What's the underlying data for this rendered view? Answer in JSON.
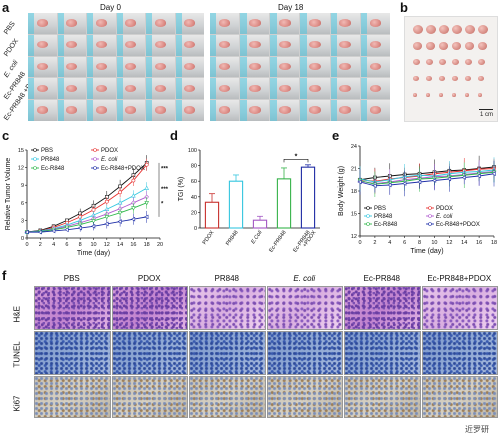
{
  "panels": {
    "a": {
      "letter": "a",
      "day_left": "Day 0",
      "day_right": "Day 18",
      "groups": [
        "PBS",
        "PDOX",
        "E. coli",
        "Ec-PR848",
        "Ec-PR848 +PDOX"
      ]
    },
    "b": {
      "letter": "b",
      "scale": "1 cm"
    },
    "c": {
      "letter": "c",
      "marks": [
        "***",
        "***",
        "*"
      ]
    },
    "d": {
      "letter": "d",
      "marks": [
        "*"
      ]
    },
    "e": {
      "letter": "e"
    },
    "f": {
      "letter": "f",
      "columns": [
        "PBS",
        "PDOX",
        "PR848",
        "E. coli",
        "Ec-PR848",
        "Ec-PR848+PDOX"
      ],
      "rows": [
        "H&E",
        "TUNEL",
        "Ki67"
      ],
      "watermark": "近罗研"
    }
  },
  "chart_data": [
    {
      "panel": "c",
      "type": "line",
      "xlabel": "Time (day)",
      "ylabel": "Relative Tumor Volume",
      "xlim": [
        0,
        20
      ],
      "ylim": [
        0,
        15
      ],
      "xticks": [
        0,
        2,
        4,
        6,
        8,
        10,
        12,
        14,
        16,
        18,
        20
      ],
      "yticks": [
        0,
        3,
        6,
        9,
        12,
        15
      ],
      "grid": false,
      "legend": "top-left",
      "x": [
        0,
        2,
        4,
        6,
        8,
        10,
        12,
        14,
        16,
        18
      ],
      "series": [
        {
          "name": "PBS",
          "color": "#111111",
          "values": [
            1.0,
            1.3,
            2.0,
            3.0,
            4.2,
            5.5,
            7.0,
            8.8,
            10.7,
            12.8
          ]
        },
        {
          "name": "PDOX",
          "color": "#e8312f",
          "values": [
            1.0,
            1.2,
            1.8,
            2.6,
            3.6,
            4.8,
            6.2,
            7.8,
            9.8,
            12.5
          ]
        },
        {
          "name": "PR848",
          "color": "#35c7e0",
          "values": [
            1.0,
            1.2,
            1.6,
            2.2,
            3.0,
            3.9,
            4.9,
            6.0,
            7.2,
            8.5
          ]
        },
        {
          "name": "E. coli",
          "color": "#b05bd0",
          "values": [
            1.0,
            1.1,
            1.5,
            2.0,
            2.6,
            3.3,
            4.1,
            5.0,
            6.0,
            7.0
          ]
        },
        {
          "name": "Ec-R848",
          "color": "#2fb84a",
          "values": [
            1.0,
            1.1,
            1.4,
            1.8,
            2.3,
            2.9,
            3.6,
            4.3,
            5.1,
            6.0
          ]
        },
        {
          "name": "Ec-R848+PDOX",
          "color": "#1f2fa8",
          "values": [
            1.0,
            1.0,
            1.2,
            1.4,
            1.7,
            2.0,
            2.4,
            2.8,
            3.2,
            3.6
          ]
        }
      ]
    },
    {
      "panel": "d",
      "type": "bar",
      "ylabel": "TGI (%)",
      "ylim": [
        0,
        100
      ],
      "yticks": [
        0,
        20,
        40,
        60,
        80,
        100
      ],
      "categories": [
        "PDOX",
        "PR848",
        "E.Coli",
        "Ec-PR848",
        "Ec-PR848 +PDOX"
      ],
      "values": [
        33,
        60,
        10,
        63,
        78
      ],
      "errors": [
        11,
        8,
        5,
        14,
        3
      ],
      "colors": [
        "#c8302d",
        "#34c6df",
        "#a357c4",
        "#36b34a",
        "#1e2ba4"
      ]
    },
    {
      "panel": "e",
      "type": "line",
      "xlabel": "Time (day)",
      "ylabel": "Body Weight (g)",
      "xlim": [
        0,
        18
      ],
      "ylim": [
        12,
        24
      ],
      "xticks": [
        0,
        2,
        4,
        6,
        8,
        10,
        12,
        14,
        16,
        18
      ],
      "yticks": [
        12,
        15,
        18,
        21,
        24
      ],
      "grid": false,
      "legend": "bottom-left",
      "x": [
        0,
        2,
        4,
        6,
        8,
        10,
        12,
        14,
        16,
        18
      ],
      "series": [
        {
          "name": "PBS",
          "color": "#111111",
          "values": [
            19.5,
            19.8,
            20.0,
            20.2,
            20.3,
            20.5,
            20.7,
            20.8,
            21.0,
            21.2
          ]
        },
        {
          "name": "PDOX",
          "color": "#e8312f",
          "values": [
            19.5,
            19.3,
            19.6,
            19.8,
            20.0,
            20.3,
            20.5,
            20.7,
            20.9,
            21.0
          ]
        },
        {
          "name": "PR848",
          "color": "#35c7e0",
          "values": [
            19.6,
            19.2,
            19.5,
            19.9,
            20.1,
            20.0,
            20.3,
            20.5,
            20.6,
            20.8
          ]
        },
        {
          "name": "E. coli",
          "color": "#b05bd0",
          "values": [
            19.3,
            19.0,
            19.2,
            19.5,
            19.7,
            19.9,
            20.0,
            20.2,
            20.4,
            20.6
          ]
        },
        {
          "name": "Ec-R848",
          "color": "#2fb84a",
          "values": [
            19.4,
            18.9,
            19.1,
            19.3,
            19.6,
            19.7,
            19.9,
            20.1,
            20.3,
            20.5
          ]
        },
        {
          "name": "Ec-R848+PDOX",
          "color": "#1f2fa8",
          "values": [
            19.2,
            18.7,
            18.8,
            19.0,
            19.2,
            19.4,
            19.6,
            19.8,
            20.0,
            20.3
          ]
        }
      ]
    }
  ]
}
